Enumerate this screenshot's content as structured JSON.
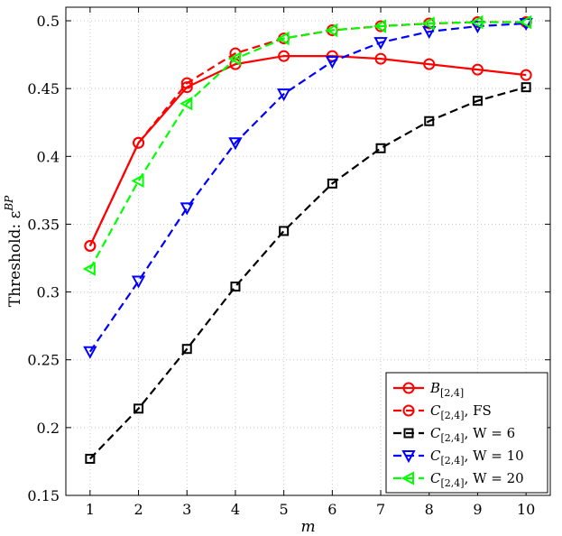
{
  "chart_data": {
    "type": "line",
    "xlabel": "m",
    "ylabel": "Threshold: ε^BP",
    "ylabel_main": "Threshold: ε",
    "ylabel_sup": "BP",
    "xlim": [
      0.5,
      10.5
    ],
    "ylim": [
      0.15,
      0.51
    ],
    "x_ticks": [
      1,
      2,
      3,
      4,
      5,
      6,
      7,
      8,
      9,
      10
    ],
    "y_ticks": [
      0.15,
      0.2,
      0.25,
      0.3,
      0.35,
      0.4,
      0.45,
      0.5
    ],
    "y_tick_labels": [
      "0.15",
      "0.2",
      "0.25",
      "0.3",
      "0.35",
      "0.4",
      "0.45",
      "0.5"
    ],
    "grid": true,
    "legend_position": "bottom-right",
    "x": [
      1,
      2,
      3,
      4,
      5,
      6,
      7,
      8,
      9,
      10
    ],
    "series": [
      {
        "name": "B_[2,4]",
        "legend": {
          "letter": "B",
          "sub": "[2,4]",
          "rest": ""
        },
        "color": "#ff0000",
        "dash": "solid",
        "marker": "circle",
        "values": [
          0.334,
          0.41,
          0.451,
          0.468,
          0.474,
          0.474,
          0.472,
          0.468,
          0.464,
          0.46
        ]
      },
      {
        "name": "C_[2,4], FS",
        "legend": {
          "letter": "C",
          "sub": "[2,4]",
          "rest": ", FS"
        },
        "color": "#ff0000",
        "dash": "dashed",
        "marker": "circle",
        "values": [
          0.334,
          0.41,
          0.454,
          0.476,
          0.487,
          0.493,
          0.496,
          0.498,
          0.499,
          0.499
        ]
      },
      {
        "name": "C_[2,4], W = 6",
        "legend": {
          "letter": "C",
          "sub": "[2,4]",
          "rest": ", W = 6"
        },
        "color": "#000000",
        "dash": "dashed",
        "marker": "square",
        "values": [
          0.177,
          0.214,
          0.258,
          0.304,
          0.345,
          0.38,
          0.406,
          0.426,
          0.441,
          0.451
        ]
      },
      {
        "name": "C_[2,4], W = 10",
        "legend": {
          "letter": "C",
          "sub": "[2,4]",
          "rest": ", W = 10"
        },
        "color": "#0000ff",
        "dash": "dashed",
        "marker": "triangle-down",
        "values": [
          0.256,
          0.308,
          0.362,
          0.41,
          0.446,
          0.47,
          0.484,
          0.492,
          0.496,
          0.498
        ]
      },
      {
        "name": "C_[2,4], W = 20",
        "legend": {
          "letter": "C",
          "sub": "[2,4]",
          "rest": ", W = 20"
        },
        "color": "#00ff00",
        "dash": "dashed",
        "marker": "triangle-left",
        "values": [
          0.317,
          0.382,
          0.439,
          0.472,
          0.487,
          0.493,
          0.496,
          0.498,
          0.499,
          0.499
        ]
      }
    ]
  }
}
